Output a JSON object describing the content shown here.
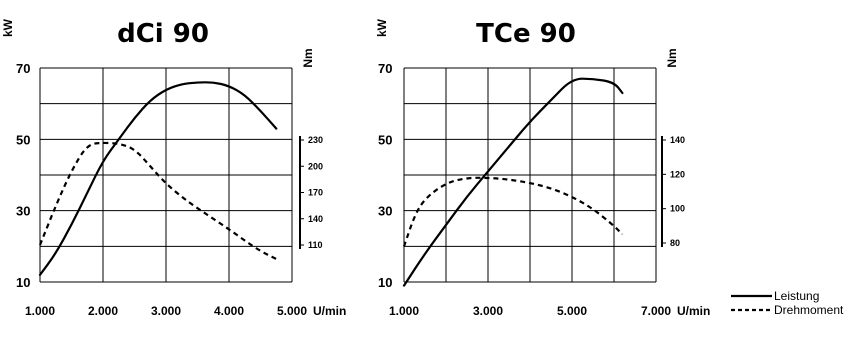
{
  "chart_data": [
    {
      "type": "line",
      "title": "dCi 90",
      "ylabel": "kW",
      "y2label": "Nm",
      "xunit": "U/min",
      "x_ticks": [
        "1.000",
        "2.000",
        "3.000",
        "4.000",
        "5.000"
      ],
      "xlim": [
        1000,
        5000
      ],
      "y_ticks": [
        "10",
        "30",
        "50",
        "70"
      ],
      "ylim": [
        10,
        70
      ],
      "y2_ticks": [
        "230",
        "200",
        "170",
        "140",
        "110"
      ],
      "y2lim": [
        110,
        230
      ],
      "grid": true,
      "series": [
        {
          "name": "Leistung",
          "axis": "kW",
          "style": "solid",
          "x": [
            1000,
            1250,
            1500,
            1750,
            2000,
            2250,
            2500,
            2750,
            3000,
            3250,
            3500,
            3750,
            4000,
            4250,
            4500,
            4750
          ],
          "y": [
            12,
            18,
            26,
            35,
            44,
            50,
            56,
            61,
            64,
            65.5,
            66,
            66,
            65,
            62.5,
            58,
            53
          ]
        },
        {
          "name": "Drehmoment",
          "axis": "Nm",
          "style": "dashed",
          "x": [
            1000,
            1250,
            1500,
            1750,
            2000,
            2250,
            2500,
            2750,
            3000,
            3250,
            3500,
            3750,
            4000,
            4250,
            4500,
            4750
          ],
          "y": [
            110,
            155,
            195,
            225,
            227,
            226,
            220,
            200,
            180,
            165,
            152,
            140,
            128,
            115,
            103,
            94
          ]
        }
      ]
    },
    {
      "type": "line",
      "title": "TCe 90",
      "ylabel": "kW",
      "y2label": "Nm",
      "xunit": "U/min",
      "x_ticks": [
        "1.000",
        "3.000",
        "5.000",
        "7.000"
      ],
      "xlim": [
        1000,
        7000
      ],
      "y_ticks": [
        "10",
        "30",
        "50",
        "70"
      ],
      "ylim": [
        10,
        70
      ],
      "y2_ticks": [
        "140",
        "120",
        "100",
        "80"
      ],
      "y2lim": [
        80,
        140
      ],
      "grid": true,
      "series": [
        {
          "name": "Leistung",
          "axis": "kW",
          "style": "solid",
          "x": [
            1000,
            1500,
            2000,
            2500,
            3000,
            3500,
            4000,
            4500,
            5000,
            5500,
            6000,
            6200
          ],
          "y": [
            9,
            18,
            26,
            34,
            41,
            48,
            55,
            61,
            67,
            67,
            66,
            63
          ]
        },
        {
          "name": "Drehmoment",
          "axis": "Nm",
          "style": "dashed",
          "x": [
            1000,
            1250,
            1500,
            2000,
            2500,
            3000,
            3500,
            4000,
            4500,
            5000,
            5500,
            6000,
            6200
          ],
          "y": [
            78,
            96,
            106,
            115,
            118,
            118,
            117,
            115,
            112,
            107,
            100,
            90,
            85
          ]
        }
      ]
    }
  ],
  "legend": {
    "items": [
      {
        "label": "Leistung",
        "style": "solid"
      },
      {
        "label": "Drehmoment",
        "style": "dashed"
      }
    ]
  }
}
